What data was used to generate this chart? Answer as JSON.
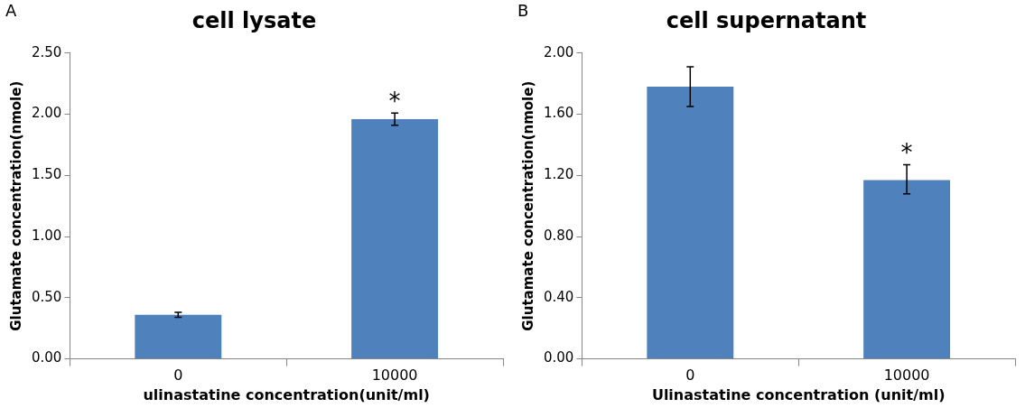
{
  "chart_data": [
    {
      "type": "bar",
      "title": "cell lysate",
      "xlabel": "ulinastatine concentration(unit/ml)",
      "ylabel": "Glutamate concentration(nmole)",
      "categories": [
        "0",
        "10000"
      ],
      "values": [
        0.36,
        1.96
      ],
      "errors": [
        0.02,
        0.05
      ],
      "color": "#4f81bd",
      "ylim": [
        0,
        2.5
      ],
      "yticks": [
        {
          "value": 0,
          "label": "0.00"
        },
        {
          "value": 0.5,
          "label": "0.50"
        },
        {
          "value": 1,
          "label": "1.00"
        },
        {
          "value": 1.5,
          "label": "1.50"
        },
        {
          "value": 2,
          "label": "2.00"
        },
        {
          "value": 2.5,
          "label": "2.50"
        }
      ],
      "grid": false,
      "legend": false,
      "annotations": [
        "A",
        {
          "text": "*",
          "x": "10000",
          "y": 2.01
        }
      ]
    },
    {
      "type": "bar",
      "title": "cell supernatant",
      "xlabel": "Ulinastatine concentration (unit/ml)",
      "ylabel": "Glutamate concentration(nmole)",
      "categories": [
        "0",
        "10000"
      ],
      "values": [
        1.78,
        1.17
      ],
      "errors": [
        0.13,
        [
          1.08,
          1.27
        ]
      ],
      "color": "#4f81bd",
      "ylim": [
        0,
        2
      ],
      "yticks": [
        {
          "value": 0,
          "label": "0.00"
        },
        {
          "value": 0.4,
          "label": "0.40"
        },
        {
          "value": 0.8,
          "label": "0.80"
        },
        {
          "value": 1.2,
          "label": "1.20"
        },
        {
          "value": 1.6,
          "label": "1.60"
        },
        {
          "value": 2,
          "label": "2.00"
        }
      ],
      "grid": false,
      "legend": false,
      "annotations": [
        "B",
        {
          "text": "*",
          "x": "10000",
          "y": 1.27
        }
      ]
    }
  ]
}
